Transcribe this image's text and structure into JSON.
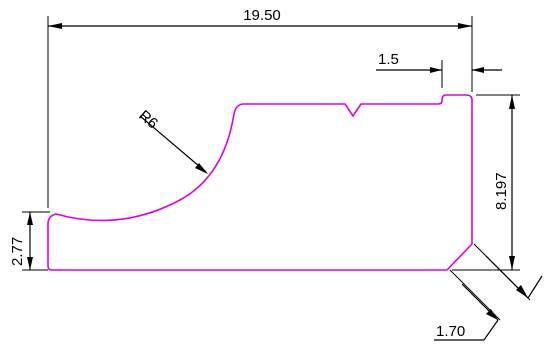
{
  "drawing": {
    "colors": {
      "profile": "#e000e0",
      "dimension": "#000000",
      "background": "#ffffff"
    },
    "dimensions": {
      "overall_width": "19.50",
      "step_width": "1.5",
      "radius": "R6",
      "right_height": "8.197",
      "left_height": "2.77",
      "chamfer": "1.70"
    }
  }
}
